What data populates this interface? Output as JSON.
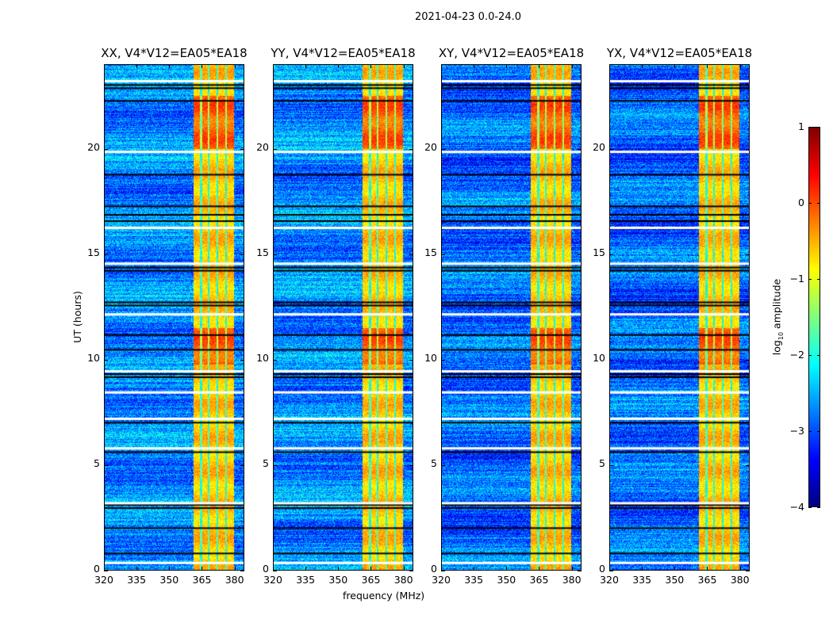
{
  "chart_data": {
    "type": "heatmap",
    "title": "2021-04-23 0.0-24.0",
    "xlabel": "frequency (MHz)",
    "ylabel": "UT (hours)",
    "xlim": [
      320,
      384.5
    ],
    "ylim": [
      0,
      24
    ],
    "xticks": [
      "320",
      "335",
      "350",
      "365",
      "380"
    ],
    "xtick_values": [
      320,
      335,
      350,
      365,
      380
    ],
    "yticks": [
      "0",
      "5",
      "10",
      "15",
      "20"
    ],
    "ytick_values": [
      0,
      5,
      10,
      15,
      20
    ],
    "panels": [
      {
        "title": "XX, V4*V12=EA05*EA18"
      },
      {
        "title": "YY, V4*V12=EA05*EA18"
      },
      {
        "title": "XY, V4*V12=EA05*EA18"
      },
      {
        "title": "YX, V4*V12=EA05*EA18"
      }
    ],
    "rfi_band_mhz": [
      361,
      379.5
    ],
    "background_log_amp": -2.7,
    "band_log_amp": -0.6,
    "flagged_black_hours": [
      23.05,
      22.9,
      22.3,
      18.8,
      17.3,
      16.9,
      16.6,
      14.4,
      14.25,
      12.75,
      12.6,
      11.2,
      10.5,
      9.35,
      9.2,
      7.05,
      5.65,
      3.15,
      3.0,
      2.05,
      0.85
    ],
    "flagged_white_hours": [
      23.25,
      19.9,
      16.3,
      14.6,
      12.2,
      9.5,
      8.5,
      7.25,
      5.85,
      3.25,
      0.42
    ],
    "colorbar": {
      "label": "log₁₀ amplitude",
      "label_main": "log",
      "label_sub": "10",
      "label_rest": " amplitude",
      "colormap": "jet",
      "range": [
        -4,
        1
      ],
      "ticks": [
        "1",
        "0",
        "−1",
        "−2",
        "−3",
        "−4"
      ],
      "tick_values": [
        1,
        0,
        -1,
        -2,
        -3,
        -4
      ]
    }
  }
}
